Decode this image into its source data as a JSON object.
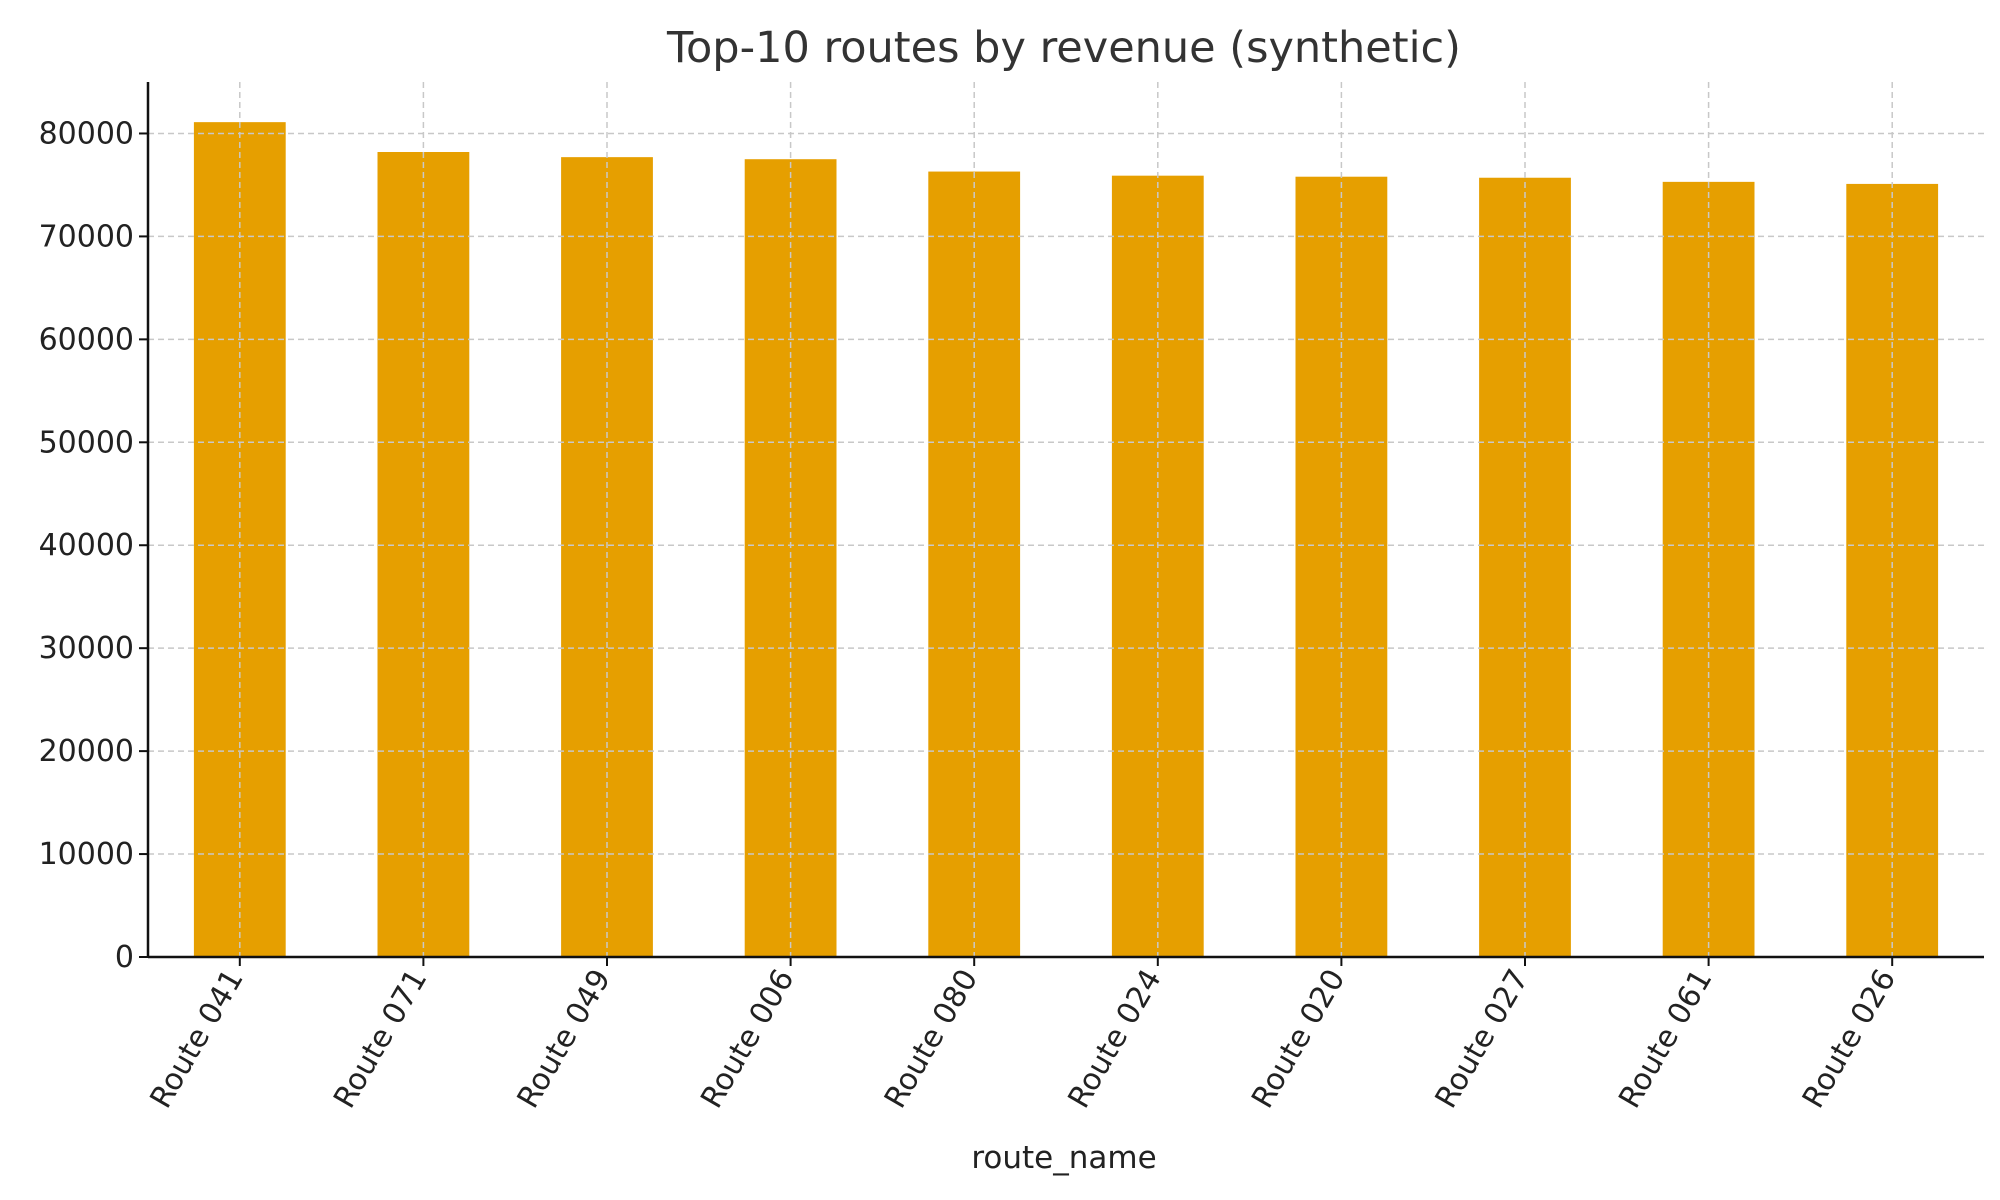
{
  "chart_data": {
    "type": "bar",
    "title": "Top-10 routes by revenue (synthetic)",
    "xlabel": "route_name",
    "ylabel": "",
    "categories": [
      "Route 041",
      "Route 071",
      "Route 049",
      "Route 006",
      "Route 080",
      "Route 024",
      "Route 020",
      "Route 027",
      "Route 061",
      "Route 026"
    ],
    "values": [
      81100,
      78200,
      77700,
      77500,
      76300,
      75900,
      75800,
      75700,
      75300,
      75100
    ],
    "ylim": [
      0,
      85000
    ],
    "yticks": [
      0,
      10000,
      20000,
      30000,
      40000,
      50000,
      60000,
      70000,
      80000
    ],
    "ytick_labels": [
      "0",
      "10000",
      "20000",
      "30000",
      "40000",
      "50000",
      "60000",
      "70000",
      "80000"
    ],
    "bar_color": "#E69F00",
    "grid": true,
    "legend": "none"
  }
}
